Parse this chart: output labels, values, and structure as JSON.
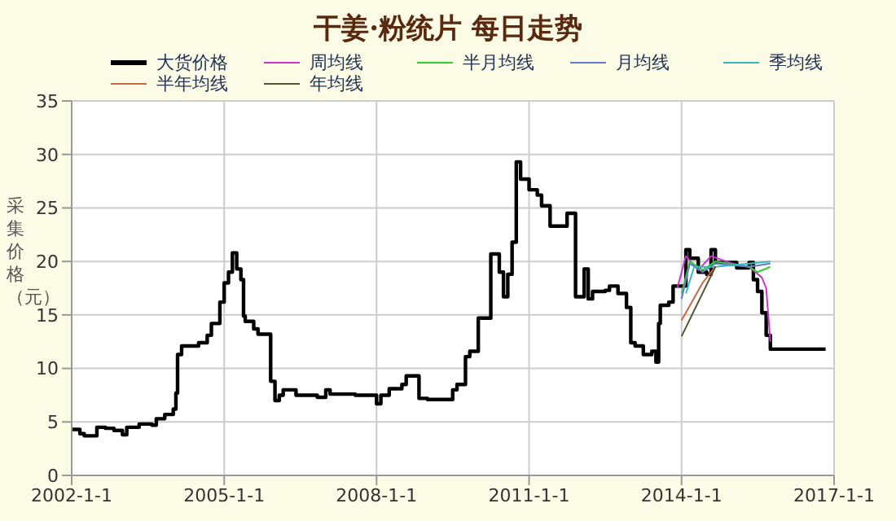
{
  "chart_data": {
    "type": "line",
    "title": "干姜·粉统片 每日走势",
    "ylabel": "采集价格（元）",
    "xlim": [
      "2002-01-01",
      "2017-01-01"
    ],
    "xticks": [
      {
        "value": "2002-01-01",
        "label": "2002-1-1"
      },
      {
        "value": "2005-01-01",
        "label": "2005-1-1"
      },
      {
        "value": "2008-01-01",
        "label": "2008-1-1"
      },
      {
        "value": "2011-01-01",
        "label": "2011-1-1"
      },
      {
        "value": "2014-01-01",
        "label": "2014-1-1"
      },
      {
        "value": "2017-01-01",
        "label": "2017-1-1"
      }
    ],
    "ylim": [
      0,
      35
    ],
    "yticks": [
      0,
      5,
      10,
      15,
      20,
      25,
      30,
      35
    ],
    "grid": true,
    "legend": "top",
    "marker": "none",
    "line_style": "solid",
    "series": [
      {
        "name": "大货价格",
        "type": "step",
        "color": "#000000",
        "x": [
          "2002-01",
          "2002-03",
          "2002-04",
          "2002-07",
          "2002-09",
          "2002-11",
          "2003-01",
          "2003-02",
          "2003-05",
          "2003-08",
          "2003-09",
          "2003-11",
          "2004-01",
          "2004-01-20",
          "2004-02",
          "2004-03",
          "2004-07",
          "2004-09",
          "2004-10",
          "2004-12",
          "2005-01",
          "2005-02",
          "2005-03",
          "2005-04",
          "2005-05",
          "2005-05-20",
          "2005-06",
          "2005-08",
          "2005-09",
          "2005-11",
          "2005-12",
          "2006-01",
          "2006-02",
          "2006-03",
          "2006-06",
          "2006-11",
          "2007-01",
          "2007-02",
          "2007-08",
          "2008-01",
          "2008-02",
          "2008-04",
          "2008-07",
          "2008-08",
          "2008-11",
          "2009-01",
          "2009-07",
          "2009-08",
          "2009-10",
          "2009-11",
          "2010-01",
          "2010-03",
          "2010-04",
          "2010-05",
          "2010-06",
          "2010-07",
          "2010-08",
          "2010-09",
          "2010-10",
          "2010-11",
          "2011-01",
          "2011-03",
          "2011-04",
          "2011-06",
          "2011-09",
          "2011-10",
          "2011-11",
          "2011-12",
          "2012-01",
          "2012-02",
          "2012-03",
          "2012-04",
          "2012-07",
          "2012-08",
          "2012-10",
          "2012-12",
          "2013-01",
          "2013-02",
          "2013-04",
          "2013-06",
          "2013-07",
          "2013-07-20",
          "2013-08",
          "2013-10",
          "2013-11",
          "2014-01",
          "2014-02",
          "2014-03",
          "2014-05",
          "2014-07",
          "2014-08",
          "2014-09",
          "2015-01",
          "2015-02",
          "2015-05",
          "2015-06",
          "2015-07",
          "2015-08",
          "2015-09",
          "2015-10",
          "2016-11"
        ],
        "values": [
          4.3,
          3.9,
          3.7,
          4.5,
          4.4,
          4.2,
          3.8,
          4.5,
          4.8,
          4.7,
          5.3,
          5.7,
          6.2,
          7.7,
          11.3,
          12.1,
          12.4,
          13.1,
          14.2,
          16.2,
          18,
          19,
          20.8,
          19.3,
          18.3,
          14.9,
          14.4,
          13.7,
          13.2,
          13.2,
          8.8,
          7,
          7.5,
          8,
          7.5,
          7.3,
          8,
          7.6,
          7.5,
          6.7,
          7.5,
          8.1,
          8.5,
          9.3,
          7.2,
          7.1,
          8,
          8.5,
          11.1,
          11.6,
          14.7,
          14.7,
          20.7,
          20.7,
          19,
          16.7,
          18.8,
          21.8,
          29.3,
          27.7,
          26.7,
          26.2,
          25.2,
          23.3,
          23.3,
          24.5,
          24.5,
          16.7,
          16.7,
          19.3,
          16.5,
          17.2,
          17.3,
          17.7,
          17,
          15.7,
          12.4,
          12.1,
          11.3,
          11.6,
          10.6,
          14.2,
          15.9,
          16.2,
          17.7,
          17.7,
          21.1,
          20.3,
          19,
          18.8,
          21.1,
          19.9,
          19.9,
          19.4,
          19.9,
          18.3,
          17.2,
          15.2,
          13.1,
          11.8,
          11.8
        ]
      },
      {
        "name": "周均线",
        "color": "#cc33cc",
        "x": [
          "2013-12",
          "2014-02",
          "2014-05",
          "2014-08",
          "2015-01",
          "2015-05",
          "2015-08",
          "2015-09",
          "2015-10"
        ],
        "values": [
          17.5,
          20.5,
          19.2,
          20.5,
          19.8,
          19.5,
          18.5,
          17.5,
          12.5
        ]
      },
      {
        "name": "半月均线",
        "color": "#33cc33",
        "x": [
          "2014-01",
          "2014-03",
          "2014-06",
          "2014-09",
          "2015-05",
          "2015-07",
          "2015-10"
        ],
        "values": [
          17,
          20,
          19.2,
          20,
          19.5,
          19,
          19.5
        ]
      },
      {
        "name": "月均线",
        "color": "#6677cc",
        "x": [
          "2014-01",
          "2014-03",
          "2014-06",
          "2014-09",
          "2015-05",
          "2015-10"
        ],
        "values": [
          16.5,
          19.8,
          19,
          19.8,
          19.5,
          19.8
        ]
      },
      {
        "name": "季均线",
        "color": "#33bbbb",
        "x": [
          "2014-02",
          "2014-04",
          "2014-09",
          "2015-05",
          "2015-10"
        ],
        "values": [
          17,
          19.5,
          19.5,
          19.8,
          20
        ]
      },
      {
        "name": "半年均线",
        "color": "#cc6644",
        "x": [
          "2014-01",
          "2014-06",
          "2014-09"
        ],
        "values": [
          14.5,
          18,
          19.5
        ]
      },
      {
        "name": "年均线",
        "color": "#555533",
        "x": [
          "2014-01",
          "2014-09"
        ],
        "values": [
          13,
          19.5
        ]
      }
    ]
  }
}
